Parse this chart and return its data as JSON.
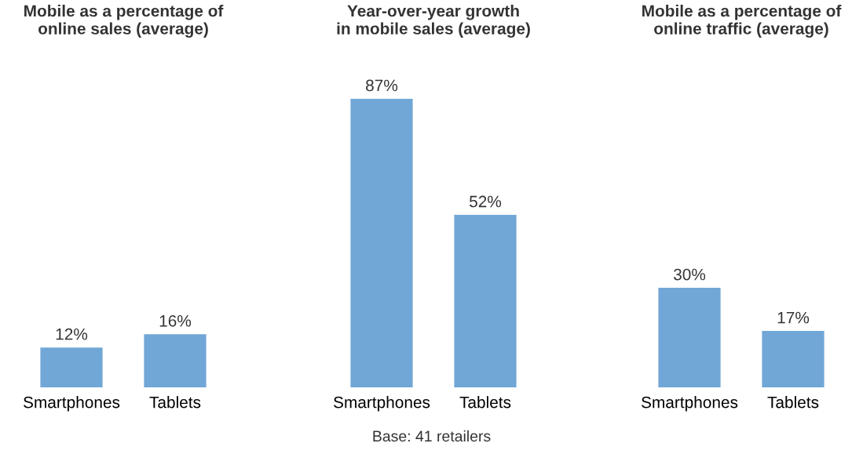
{
  "chart_data": [
    {
      "type": "bar",
      "title": "Mobile as a percentage of\nonline sales (average)",
      "categories": [
        "Smartphones",
        "Tablets"
      ],
      "values": [
        12,
        16
      ],
      "color": "#71a7d6",
      "tick_labels": "x",
      "data_labels": true,
      "value_labels": [
        "12%",
        "16%"
      ]
    },
    {
      "type": "bar",
      "title": "Year-over-year growth\nin mobile sales (average)",
      "categories": [
        "Smartphones",
        "Tablets"
      ],
      "values": [
        87,
        52
      ],
      "color": "#71a7d6",
      "tick_labels": "x",
      "data_labels": true,
      "value_labels": [
        "87%",
        "52%"
      ],
      "annotations": [
        "Base: 41 retailers"
      ]
    },
    {
      "type": "bar",
      "title": "Mobile as a percentage of\nonline traffic (average)",
      "categories": [
        "Smartphones",
        "Tablets"
      ],
      "values": [
        30,
        17
      ],
      "color": "#71a7d6",
      "tick_labels": "x",
      "data_labels": true,
      "value_labels": [
        "30%",
        "17%"
      ]
    }
  ]
}
